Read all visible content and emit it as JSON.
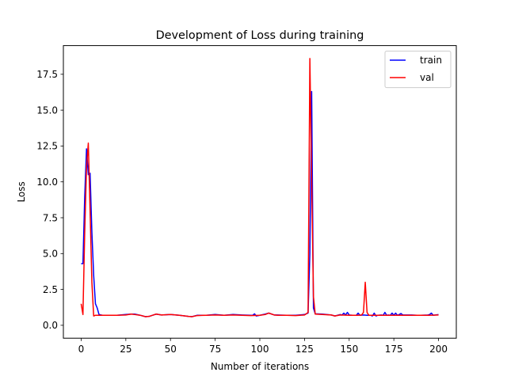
{
  "chart_data": {
    "type": "line",
    "title": "Development of Loss during training",
    "xlabel": "Number of iterations",
    "ylabel": "Loss",
    "xlim": [
      -9.95,
      209.95
    ],
    "ylim": [
      -0.9,
      19.5
    ],
    "xticks": [
      0,
      25,
      50,
      75,
      100,
      125,
      150,
      175,
      200
    ],
    "yticks": [
      0.0,
      2.5,
      5.0,
      7.5,
      10.0,
      12.5,
      15.0,
      17.5
    ],
    "ytick_labels": [
      "0.0",
      "2.5",
      "5.0",
      "7.5",
      "10.0",
      "12.5",
      "15.0",
      "17.5"
    ],
    "grid": false,
    "legend_position": "top-right",
    "series": [
      {
        "name": "train",
        "color": "#0000ff",
        "x": [
          0,
          1,
          2,
          3,
          4,
          5,
          6,
          7,
          8,
          9,
          10,
          12,
          15,
          20,
          25,
          28,
          30,
          33,
          36,
          38,
          40,
          42,
          45,
          50,
          55,
          60,
          62,
          65,
          70,
          75,
          80,
          85,
          90,
          95,
          96,
          97,
          98,
          100,
          103,
          105,
          108,
          110,
          115,
          120,
          125,
          127,
          128,
          129,
          130,
          131,
          135,
          140,
          142,
          145,
          146,
          147,
          148,
          149,
          150,
          152,
          154,
          155,
          156,
          158,
          160,
          162,
          163,
          164,
          165,
          166,
          168,
          169,
          170,
          171,
          172,
          173,
          174,
          175,
          176,
          177,
          178,
          179,
          180,
          185,
          188,
          190,
          194,
          195,
          196,
          197,
          200
        ],
        "y": [
          4.3,
          4.3,
          9.0,
          12.3,
          10.5,
          10.6,
          6.5,
          3.5,
          1.5,
          1.2,
          0.75,
          0.7,
          0.7,
          0.7,
          0.75,
          0.78,
          0.78,
          0.7,
          0.6,
          0.62,
          0.7,
          0.78,
          0.72,
          0.75,
          0.7,
          0.62,
          0.6,
          0.7,
          0.7,
          0.75,
          0.7,
          0.75,
          0.72,
          0.7,
          0.7,
          0.8,
          0.65,
          0.7,
          0.78,
          0.85,
          0.72,
          0.72,
          0.7,
          0.7,
          0.75,
          0.85,
          5.0,
          16.3,
          1.2,
          0.8,
          0.78,
          0.72,
          0.65,
          0.75,
          0.72,
          0.85,
          0.72,
          0.9,
          0.72,
          0.7,
          0.7,
          0.85,
          0.7,
          0.72,
          0.7,
          0.7,
          0.65,
          0.85,
          0.65,
          0.7,
          0.72,
          0.7,
          0.9,
          0.7,
          0.72,
          0.7,
          0.85,
          0.7,
          0.85,
          0.7,
          0.75,
          0.82,
          0.72,
          0.72,
          0.7,
          0.7,
          0.72,
          0.75,
          0.85,
          0.7,
          0.75
        ]
      },
      {
        "name": "val",
        "color": "#ff0000",
        "x": [
          0,
          1,
          2,
          3,
          4,
          5,
          6,
          7,
          8,
          10,
          15,
          20,
          25,
          28,
          30,
          33,
          36,
          38,
          40,
          42,
          45,
          50,
          55,
          60,
          62,
          65,
          70,
          75,
          80,
          85,
          90,
          95,
          100,
          103,
          105,
          108,
          110,
          115,
          120,
          125,
          126,
          127,
          128,
          129,
          130,
          131,
          135,
          140,
          142,
          145,
          150,
          155,
          157,
          158,
          159,
          160,
          161,
          165,
          170,
          175,
          180,
          185,
          190,
          195,
          200
        ],
        "y": [
          1.5,
          0.75,
          6.5,
          11.0,
          12.7,
          8.0,
          3.0,
          0.65,
          0.7,
          0.7,
          0.7,
          0.7,
          0.72,
          0.78,
          0.75,
          0.7,
          0.6,
          0.62,
          0.7,
          0.78,
          0.72,
          0.75,
          0.7,
          0.62,
          0.6,
          0.68,
          0.7,
          0.72,
          0.7,
          0.72,
          0.7,
          0.68,
          0.7,
          0.75,
          0.85,
          0.72,
          0.7,
          0.7,
          0.68,
          0.72,
          0.8,
          0.9,
          18.6,
          10.0,
          2.0,
          0.78,
          0.75,
          0.72,
          0.65,
          0.72,
          0.7,
          0.7,
          0.72,
          0.9,
          3.0,
          0.9,
          0.7,
          0.7,
          0.7,
          0.7,
          0.7,
          0.7,
          0.7,
          0.7,
          0.72
        ]
      }
    ]
  }
}
